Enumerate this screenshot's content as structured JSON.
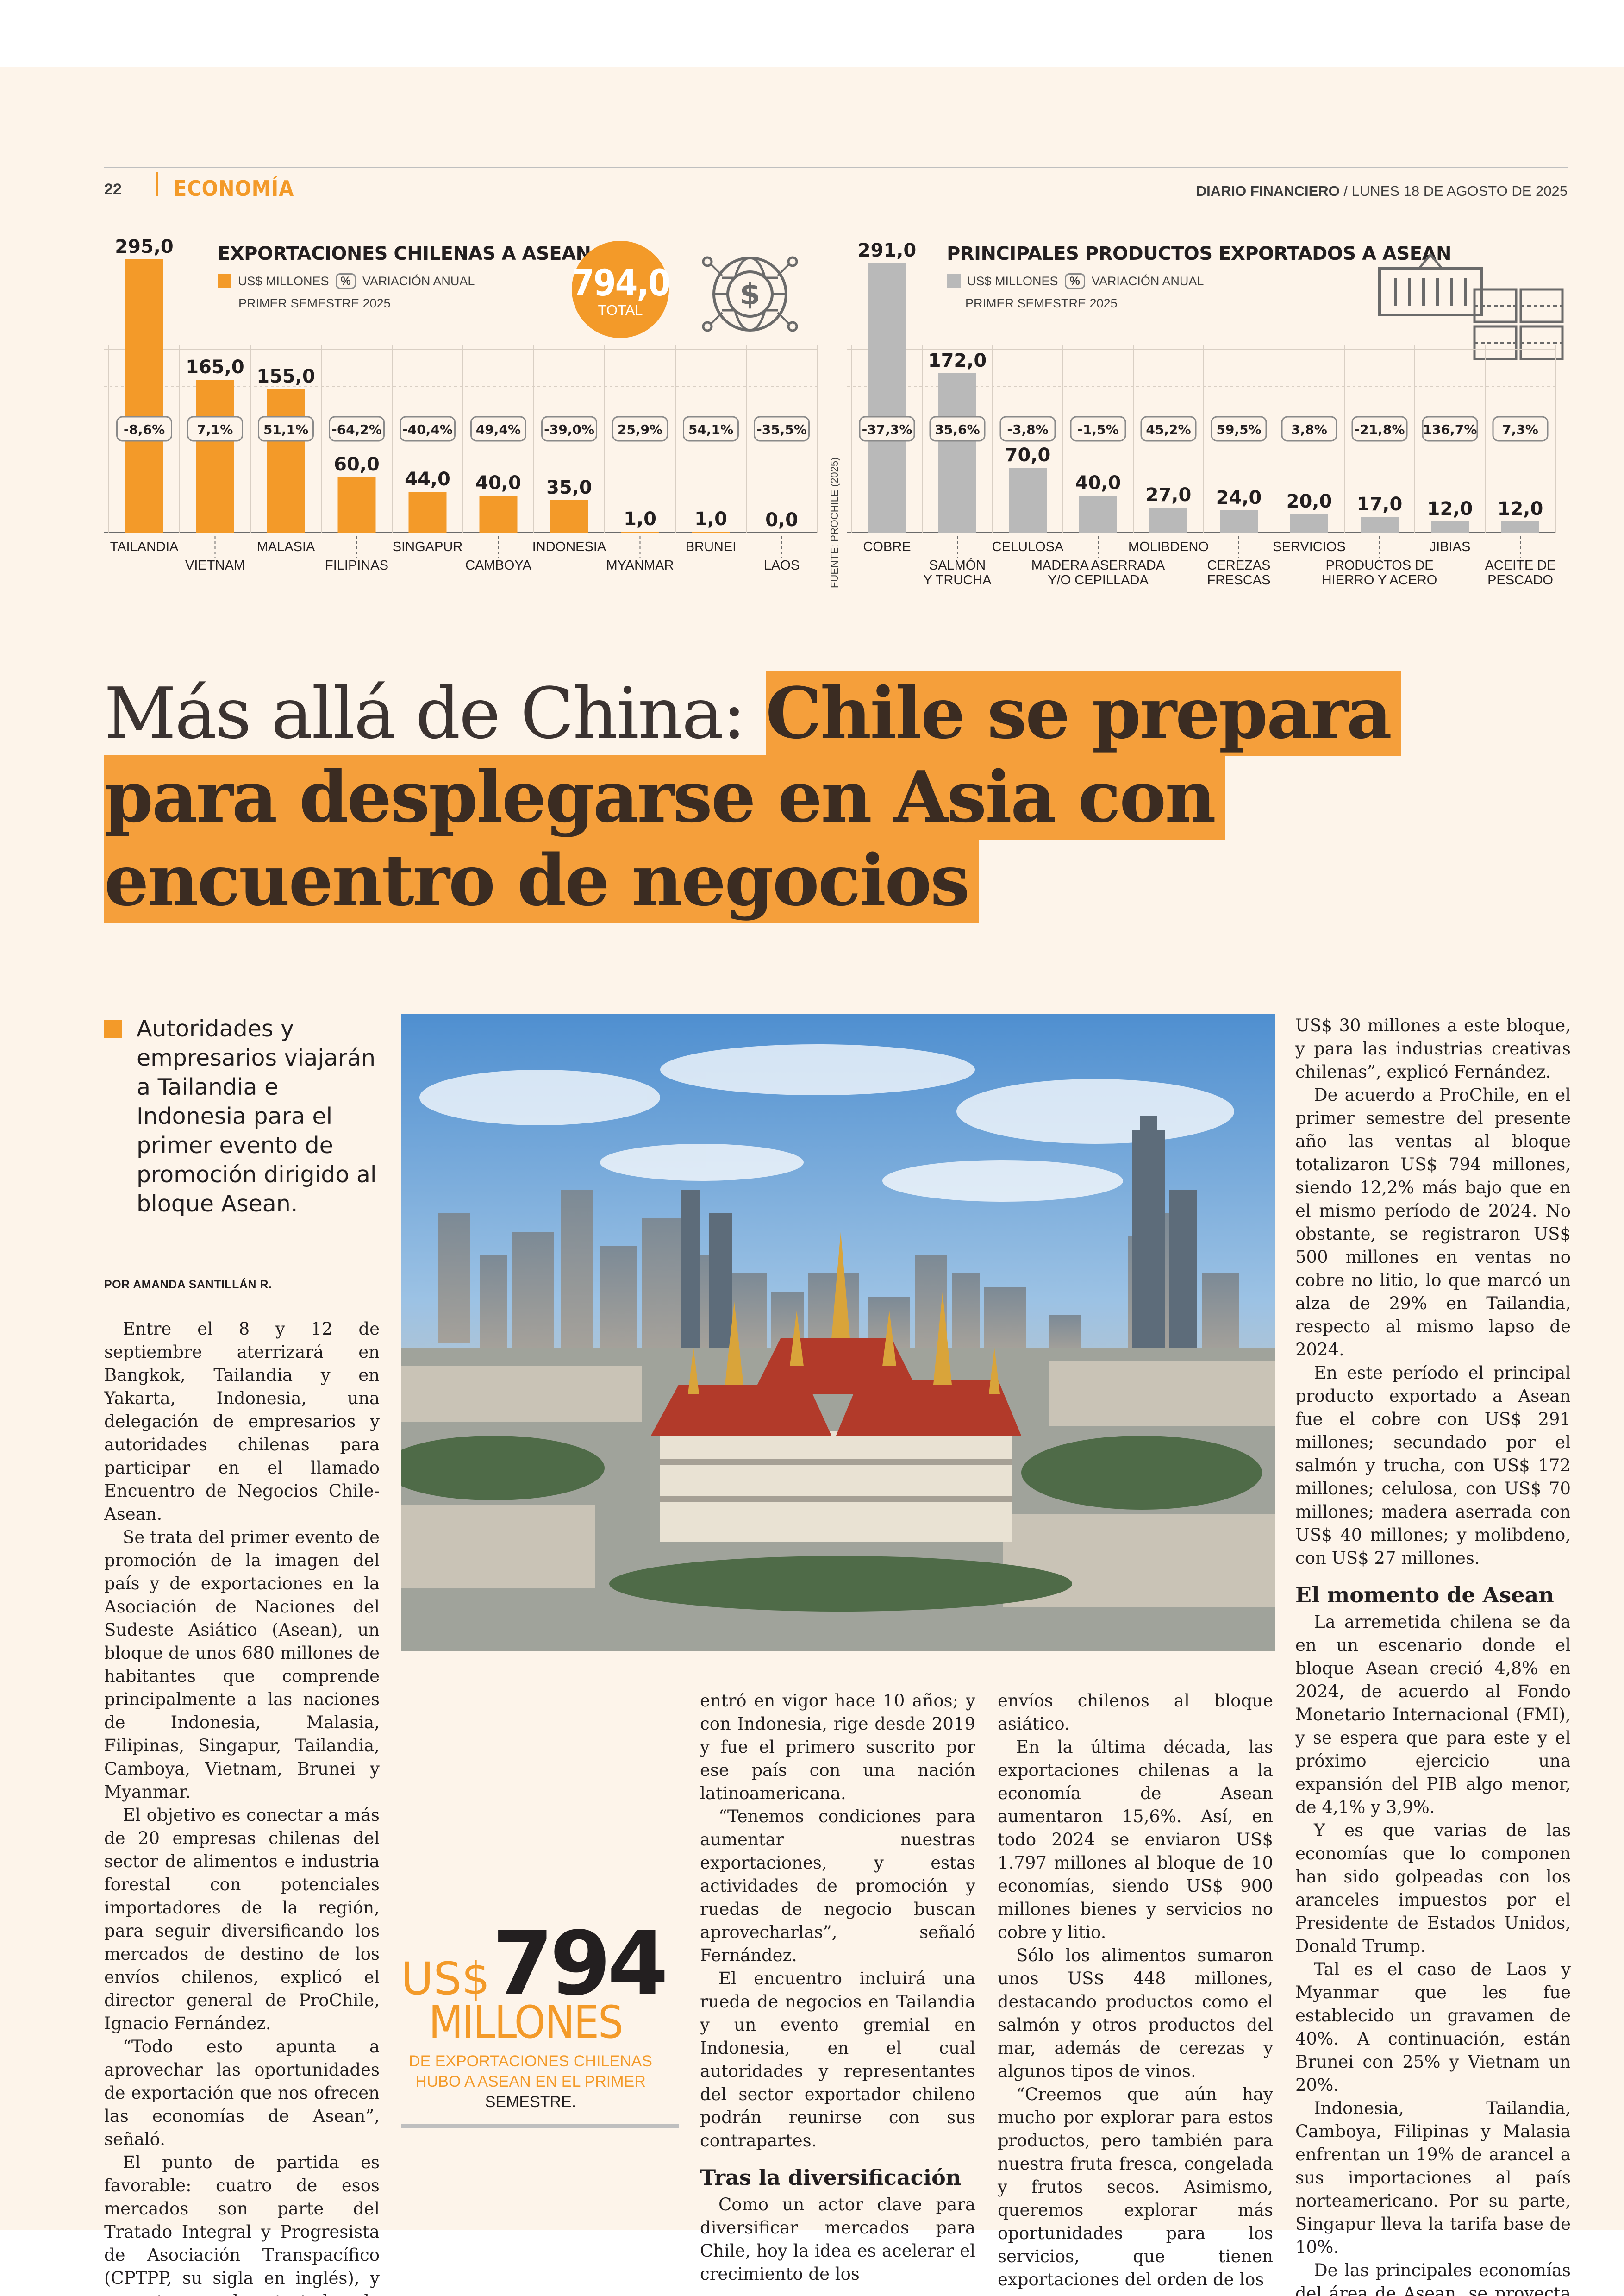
{
  "header": {
    "page_number": "22",
    "section": "ECONOMÍA",
    "publication": "DIARIO FINANCIERO",
    "date": "/ LUNES 18 DE AGOSTO DE 2025"
  },
  "colors": {
    "accent": "#f39a29",
    "gray_bar": "#b9b9b9",
    "highlight": "#f59f3b"
  },
  "chart_data": [
    {
      "type": "bar",
      "title": "EXPORTACIONES CHILENAS A ASEAN",
      "legend": {
        "value_label": "US$ MILLONES",
        "pct_symbol": "%",
        "pct_label": "VARIACIÓN ANUAL",
        "period": "PRIMER SEMESTRE 2025"
      },
      "total": {
        "value": "794,0",
        "label": "TOTAL"
      },
      "categories": [
        "TAILANDIA",
        "VIETNAM",
        "MALASIA",
        "FILIPINAS",
        "SINGAPUR",
        "CAMBOYA",
        "INDONESIA",
        "MYANMAR",
        "BRUNEI",
        "LAOS"
      ],
      "values": [
        295.0,
        165.0,
        155.0,
        60.0,
        44.0,
        40.0,
        35.0,
        1.0,
        1.0,
        0.0
      ],
      "value_labels": [
        "295,0",
        "165,0",
        "155,0",
        "60,0",
        "44,0",
        "40,0",
        "35,0",
        "1,0",
        "1,0",
        "0,0"
      ],
      "variation_labels": [
        "-8,6%",
        "7,1%",
        "51,1%",
        "-64,2%",
        "-40,4%",
        "49,4%",
        "-39,0%",
        "25,9%",
        "54,1%",
        "-35,5%"
      ],
      "color": "#f39a29",
      "ylim": [
        0,
        300
      ]
    },
    {
      "type": "bar",
      "title": "PRINCIPALES PRODUCTOS EXPORTADOS A ASEAN",
      "legend": {
        "value_label": "US$ MILLONES",
        "pct_symbol": "%",
        "pct_label": "VARIACIÓN ANUAL",
        "period": "PRIMER SEMESTRE 2025"
      },
      "source": "FUENTE: PROCHILE (2025)",
      "categories": [
        "COBRE",
        "SALMÓN Y TRUCHA",
        "CELULOSA",
        "MADERA ASERRADA Y/O CEPILLADA",
        "MOLIBDENO",
        "CEREZAS FRESCAS",
        "SERVICIOS",
        "PRODUCTOS DE HIERRO Y ACERO",
        "JIBIAS",
        "ACEITE DE PESCADO"
      ],
      "category_lines": [
        [
          "COBRE"
        ],
        [
          "SALMÓN",
          "Y TRUCHA"
        ],
        [
          "CELULOSA"
        ],
        [
          "MADERA ASERRADA",
          "Y/O CEPILLADA"
        ],
        [
          "MOLIBDENO"
        ],
        [
          "CEREZAS",
          "FRESCAS"
        ],
        [
          "SERVICIOS"
        ],
        [
          "PRODUCTOS DE",
          "HIERRO Y ACERO"
        ],
        [
          "JIBIAS"
        ],
        [
          "ACEITE DE",
          "PESCADO"
        ]
      ],
      "values": [
        291.0,
        172.0,
        70.0,
        40.0,
        27.0,
        24.0,
        20.0,
        17.0,
        12.0,
        12.0
      ],
      "value_labels": [
        "291,0",
        "172,0",
        "70,0",
        "40,0",
        "27,0",
        "24,0",
        "20,0",
        "17,0",
        "12,0",
        "12,0"
      ],
      "variation_labels": [
        "-37,3%",
        "35,6%",
        "-3,8%",
        "-1,5%",
        "45,2%",
        "59,5%",
        "3,8%",
        "-21,8%",
        "136,7%",
        "7,3%"
      ],
      "color": "#b9b9b9",
      "ylim": [
        0,
        300
      ]
    }
  ],
  "article": {
    "headline_light": "Más allá de China: ",
    "headline_bold": "Chile se prepara para desplegarse en Asia con encuentro de negocios",
    "lead": "Autoridades y empresarios viajarán a Tailandia e Indonesia para el primer evento de promoción dirigido al bloque Asean.",
    "byline": "POR AMANDA SANTILLÁN R.",
    "col1": [
      "Entre el 8 y 12 de septiembre aterrizará en Bangkok, Tailandia y en Yakarta, Indonesia, una delegación de empresarios y autoridades chilenas para participar en el llamado Encuentro de Negocios Chile-Asean.",
      "Se trata del primer evento de promoción de la imagen del país y de exportaciones en la Asociación de Naciones del Sudeste Asiático (Asean), un bloque de unos 680 millones de habitantes que comprende principalmente a las naciones de Indonesia, Malasia, Filipinas, Singapur, Tailandia, Camboya, Vietnam, Brunei y Myanmar.",
      "El objetivo es conectar a más de 20 empresas chilenas del sector de alimentos e industria forestal con potenciales importadores de la región, para seguir diversificando los mercados de destino de los envíos chilenos, explicó el director general de ProChile, Ignacio Fernández.",
      "“Todo esto apunta a aprovechar las oportunidades de exportación que nos ofrecen las economías de Asean”, señaló.",
      "El punto de partida es favorable: cuatro de esos mercados son parte del Tratado Integral y Progresista de Asociación Transpacífico (CPTPP, su sigla en inglés), y con otras ya hay tratados de libre comercio. Por ejemplo, el TLC con Tailandia"
    ],
    "col2": [
      "entró en vigor hace 10 años; y con Indonesia, rige desde 2019 y fue el primero suscrito por ese país con una nación latinoamericana.",
      "“Tenemos condiciones para aumentar nuestras exportaciones, y estas actividades de promoción y ruedas de negocio buscan aprovecharlas”, señaló Fernández.",
      "El encuentro incluirá una rueda de negocios en Tailandia y un evento gremial en Indonesia, en el cual autoridades y representantes del sector exportador chileno podrán reunirse con sus contrapartes."
    ],
    "col2_heading": "Tras la diversificación",
    "col2_after": [
      "Como un actor clave para diversificar mercados para Chile, hoy la idea es acelerar el crecimiento de los"
    ],
    "col3": [
      "envíos chilenos al bloque asiático.",
      "En la última década, las exportaciones chilenas a la economía de Asean aumentaron 15,6%. Así, en todo 2024 se enviaron US$ 1.797 millones al bloque de 10 economías, siendo US$ 900 millones bienes y servicios no cobre y litio.",
      "Sólo los alimentos sumaron unos US$ 448 millones, destacando productos como el salmón y otros productos del mar, además de cerezas y algunos tipos de vinos.",
      "“Creemos que aún hay mucho por explorar para estos productos, pero también para nuestra fruta fresca, congelada y frutos secos. Asimismo, queremos explorar más oportunidades para los servicios, que tienen exportaciones del orden de los"
    ],
    "col4": [
      "US$ 30 millones a este bloque, y para las industrias creativas chilenas”, explicó Fernández.",
      "De acuerdo a ProChile, en el primer semestre del presente año las ventas al bloque totalizaron US$ 794 millones, siendo 12,2% más bajo que en el mismo período de 2024. No obstante, se registraron US$ 500 millones en ventas no cobre no litio, lo que marcó un alza de 29% en Tailandia, respecto al mismo lapso de 2024.",
      "En este período el principal producto exportado a Asean fue el cobre con US$ 291 millones; secundado por el salmón y trucha, con US$ 172 millones; celulosa, con US$ 70 millones; madera aserrada con US$ 40 millones; y molibdeno, con US$ 27 millones."
    ],
    "col4_heading": "El momento de Asean",
    "col4_after": [
      "La arremetida chilena se da en un escenario donde el bloque Asean creció 4,8% en 2024, de acuerdo al Fondo Monetario Internacional (FMI), y se espera que para este y el próximo ejercicio una expansión del PIB algo menor, de 4,1% y 3,9%.",
      "Y es que varias de las economías que lo componen han sido golpeadas con los aranceles impuestos por el Presidente de Estados Unidos, Donald Trump.",
      "Tal es el caso de Laos y Myanmar que les fue establecido un gravamen de 40%. A continuación, están Brunei con 25% y Vietnam un 20%.",
      "Indonesia, Tailandia, Camboya, Filipinas y Malasia enfrentan un 19% de arancel a sus importaciones al país norteamericano. Por su parte, Singapur lleva la tarifa base de 10%.",
      "De las principales economías del área de Asean, se proyecta para este año que Tailandia crecerá 1,8%; Indonesia 4,7% y Singapur 2%, de acuerdo al FMI."
    ],
    "pullquote": {
      "currency": "US$",
      "number": "794",
      "unit": "MILLONES",
      "desc_orange": "DE EXPORTACIONES CHILENAS HUBO A ASEAN EN EL PRIMER",
      "desc_dark": "SEMESTRE."
    }
  },
  "icons": [
    "dollar-globe-icon",
    "container-icon",
    "crates-icon"
  ]
}
